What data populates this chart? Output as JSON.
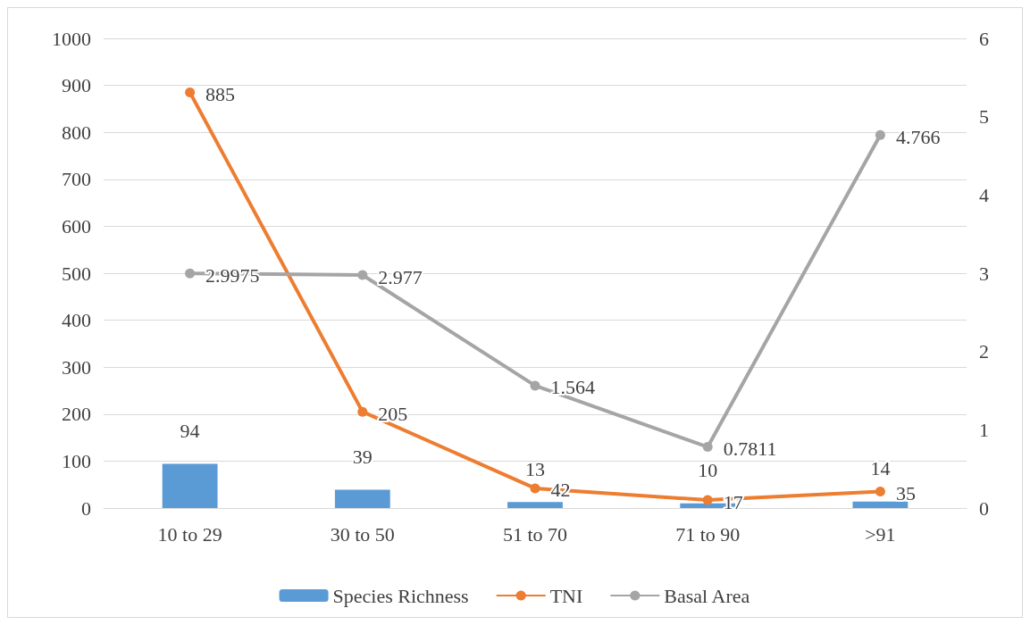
{
  "chart_data": {
    "type": "bar",
    "categories": [
      "10 to 29",
      "30 to 50",
      "51 to 70",
      "71 to 90",
      ">91"
    ],
    "series": [
      {
        "name": "Species Richness",
        "color": "#5b9bd5",
        "values": [
          94,
          39,
          13,
          10,
          14
        ]
      },
      {
        "name": "TNI",
        "type": "line",
        "color": "#ed7d31",
        "values": [
          885,
          205,
          42,
          17,
          35
        ]
      },
      {
        "name": "Basal Area",
        "type": "line",
        "axis": "y2",
        "color": "#a5a5a5",
        "values": [
          2.9975,
          2.977,
          1.564,
          0.7811,
          4.766
        ]
      }
    ],
    "ylim": [
      0,
      1000
    ],
    "yticks": [
      0,
      100,
      200,
      300,
      400,
      500,
      600,
      700,
      800,
      900,
      1000
    ],
    "y2lim": [
      0,
      6
    ],
    "y2ticks": [
      0,
      1,
      2,
      3,
      4,
      5,
      6
    ],
    "grid": "y",
    "legend": "bottom",
    "data_labels": true,
    "marker": "circle"
  }
}
